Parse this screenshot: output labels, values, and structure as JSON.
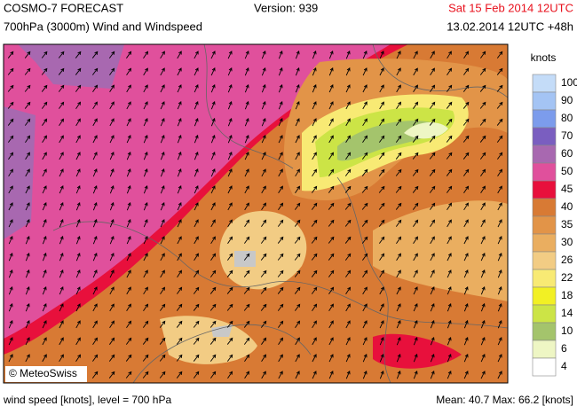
{
  "header": {
    "title": "COSMO-7 FORECAST",
    "version": "Version: 939",
    "valid_time": "Sat 15 Feb 2014 12UTC",
    "subtitle": "700hPa (3000m) Wind and Windspeed",
    "run_time": "13.02.2014 12UTC +48h"
  },
  "legend": {
    "unit": "knots",
    "entries": [
      {
        "label": "100",
        "color": "#c4dcf8"
      },
      {
        "label": "90",
        "color": "#a4c4f4"
      },
      {
        "label": "80",
        "color": "#7c9cec"
      },
      {
        "label": "70",
        "color": "#7a5ec0"
      },
      {
        "label": "60",
        "color": "#a868b0"
      },
      {
        "label": "50",
        "color": "#e0509c"
      },
      {
        "label": "45",
        "color": "#e8103c"
      },
      {
        "label": "40",
        "color": "#d87a34"
      },
      {
        "label": "35",
        "color": "#e29448"
      },
      {
        "label": "30",
        "color": "#eaae60"
      },
      {
        "label": "26",
        "color": "#f2cc84"
      },
      {
        "label": "22",
        "color": "#f8ea74"
      },
      {
        "label": "18",
        "color": "#f2f024"
      },
      {
        "label": "14",
        "color": "#cce446"
      },
      {
        "label": "10",
        "color": "#a4c46c"
      },
      {
        "label": "6",
        "color": "#eef6c4"
      },
      {
        "label": "4",
        "color": "#ffffff"
      }
    ]
  },
  "copyright": "© MeteoSwiss",
  "footer": {
    "left": "wind speed [knots], level = 700 hPa",
    "right": "Mean:  40.7 Max:  66.2 [knots]"
  }
}
